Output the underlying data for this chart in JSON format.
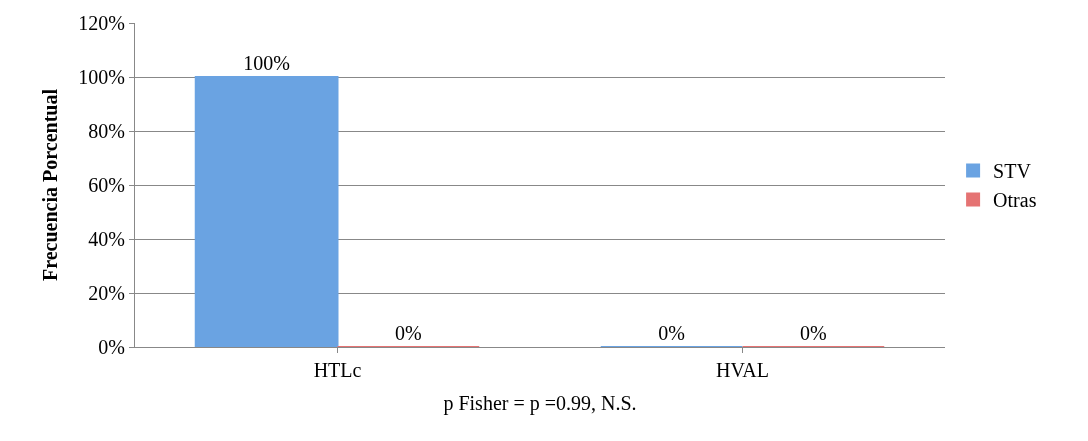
{
  "chart_data": {
    "type": "bar",
    "categories": [
      "HTLc",
      "HVAL"
    ],
    "series": [
      {
        "name": "STV",
        "color": "#6aa3e2",
        "values": [
          100,
          0
        ],
        "value_labels": [
          "100%",
          "0%"
        ]
      },
      {
        "name": "Otras",
        "color": "#e57373",
        "values": [
          0,
          0
        ],
        "value_labels": [
          "0%",
          "0%"
        ]
      }
    ],
    "ylabel": "Frecuencia Porcentual",
    "xlabel": "p Fisher = p =0.99, N.S.",
    "ylim": [
      0,
      120
    ],
    "yticks": [
      {
        "value": 0,
        "label": "0%"
      },
      {
        "value": 20,
        "label": "20%"
      },
      {
        "value": 40,
        "label": "40%"
      },
      {
        "value": 60,
        "label": "60%"
      },
      {
        "value": 80,
        "label": "80%"
      },
      {
        "value": 100,
        "label": "100%"
      },
      {
        "value": 120,
        "label": "120%"
      }
    ],
    "grid": "y",
    "legend": "right"
  }
}
